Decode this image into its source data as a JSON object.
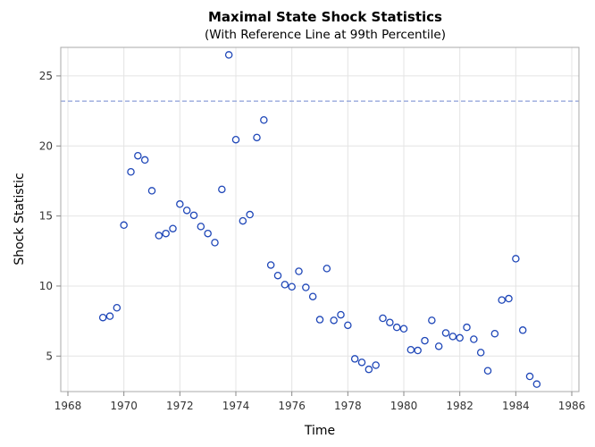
{
  "chart_data": {
    "type": "scatter",
    "title": "Maximal State Shock Statistics",
    "subtitle": "(With Reference Line at 99th Percentile)",
    "xlabel": "Time",
    "ylabel": "Shock Statistic",
    "xlim": [
      1968,
      1986
    ],
    "ylim": [
      2.5,
      27
    ],
    "xticks": [
      "1968",
      "1970",
      "1972",
      "1974",
      "1976",
      "1978",
      "1980",
      "1982",
      "1984",
      "1986"
    ],
    "yticks": [
      "5",
      "10",
      "15",
      "20",
      "25"
    ],
    "grid": true,
    "reference_line": {
      "y": 23.2,
      "style": "dashed",
      "color": "#8c9fd9"
    },
    "marker_color": "#1f47b8",
    "x": [
      1969.25,
      1969.5,
      1969.75,
      1970,
      1970.25,
      1970.5,
      1970.75,
      1971,
      1971.25,
      1971.5,
      1971.75,
      1972,
      1972.25,
      1972.5,
      1972.75,
      1973,
      1973.25,
      1973.5,
      1973.75,
      1974,
      1974.25,
      1974.5,
      1974.75,
      1975,
      1975.25,
      1975.5,
      1975.75,
      1976,
      1976.25,
      1976.5,
      1976.75,
      1977,
      1977.25,
      1977.5,
      1977.75,
      1978,
      1978.25,
      1978.5,
      1978.75,
      1979,
      1979.25,
      1979.5,
      1979.75,
      1980,
      1980.25,
      1980.5,
      1980.75,
      1981,
      1981.25,
      1981.5,
      1981.75,
      1982,
      1982.25,
      1982.5,
      1982.75,
      1983,
      1983.25,
      1983.5,
      1983.75,
      1984,
      1984.25,
      1984.5,
      1984.75
    ],
    "y": [
      7.75,
      7.85,
      8.45,
      14.35,
      18.15,
      19.3,
      19.0,
      16.8,
      13.6,
      13.75,
      14.1,
      15.85,
      15.4,
      15.05,
      14.25,
      13.75,
      13.1,
      16.9,
      26.5,
      20.45,
      14.65,
      15.1,
      20.6,
      21.85,
      11.5,
      10.75,
      10.1,
      9.95,
      11.05,
      9.9,
      9.25,
      7.6,
      11.25,
      7.55,
      7.95,
      7.2,
      4.8,
      4.55,
      4.05,
      4.35,
      7.7,
      7.4,
      7.05,
      6.95,
      5.45,
      5.4,
      6.1,
      7.55,
      5.7,
      6.65,
      6.4,
      6.3,
      7.05,
      6.2,
      5.25,
      3.95,
      6.6,
      9.0,
      9.1,
      11.95,
      6.85,
      3.55,
      3.0
    ]
  }
}
